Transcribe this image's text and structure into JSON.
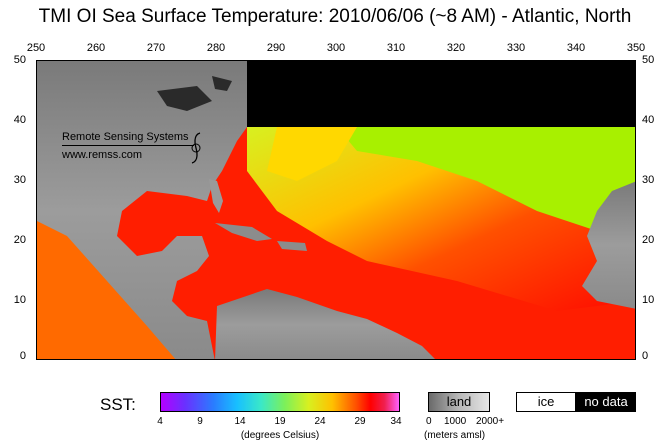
{
  "title": "TMI OI Sea Surface Temperature: 2010/06/06 (~8 AM) - Atlantic, North",
  "x_ticks": [
    "250",
    "260",
    "270",
    "280",
    "290",
    "300",
    "310",
    "320",
    "330",
    "340",
    "350"
  ],
  "y_ticks": [
    "50",
    "40",
    "30",
    "20",
    "10",
    "0"
  ],
  "watermark": {
    "line1": "Remote Sensing Systems",
    "line2": "www.remss.com"
  },
  "legend": {
    "label": "SST:",
    "colorbar_ticks": [
      "4",
      "9",
      "14",
      "19",
      "24",
      "29",
      "34"
    ],
    "units": "(degrees Celsius)",
    "land_label": "land",
    "land_ticks": [
      "0",
      "1000",
      "2000+"
    ],
    "land_units": "(meters amsl)",
    "ice_label": "ice",
    "nodata_label": "no data"
  },
  "colors": {
    "land": "#8c8c8c",
    "no_data": "#000000",
    "warm": "#ff1e00",
    "cool": "#a8f000"
  }
}
